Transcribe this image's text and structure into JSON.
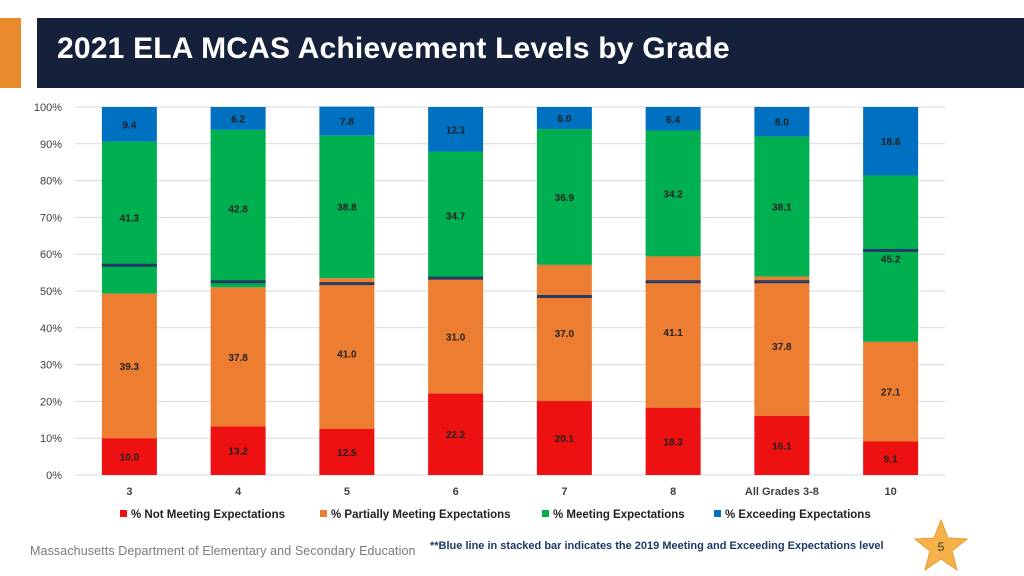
{
  "header": {
    "title": "2021 ELA MCAS Achievement Levels by Grade"
  },
  "footer": {
    "org": "Massachusetts Department of Elementary and Secondary Education",
    "note": "**Blue line in stacked bar indicates the 2019 Meeting and Exceeding Expectations level",
    "page_number": "5"
  },
  "colors": {
    "accent": "#e8892b",
    "title_bg": "#15203a",
    "benchmark_line": "#243b63"
  },
  "chart_data": {
    "type": "bar",
    "stacked": true,
    "categories": [
      "3",
      "4",
      "5",
      "6",
      "7",
      "8",
      "All Grades 3-8",
      "10"
    ],
    "yticks": [
      "0%",
      "10%",
      "20%",
      "30%",
      "40%",
      "50%",
      "60%",
      "70%",
      "80%",
      "90%",
      "100%"
    ],
    "ylim": [
      0,
      100
    ],
    "grid": true,
    "legend_position": "bottom",
    "series": [
      {
        "name": "% Not Meeting Expectations",
        "color": "#ee1111",
        "values": [
          10.0,
          13.2,
          12.5,
          22.2,
          20.1,
          18.3,
          16.1,
          9.1
        ],
        "labels": [
          "10.0",
          "13.2",
          "12.5",
          "22.2",
          "20.1",
          "18.3",
          "16.1",
          "9.1"
        ]
      },
      {
        "name": "% Partially Meeting Expectations",
        "color": "#ed7d31",
        "values": [
          39.3,
          37.8,
          41.0,
          31.0,
          37.0,
          41.1,
          37.8,
          27.1
        ],
        "labels": [
          "39.3",
          "37.8",
          "41.0",
          "31.0",
          "37.0",
          "41.1",
          "37.8",
          "27.1"
        ]
      },
      {
        "name": "% Meeting Expectations",
        "color": "#00b050",
        "values": [
          41.3,
          42.8,
          38.8,
          34.7,
          36.9,
          34.2,
          38.1,
          45.2
        ],
        "labels": [
          "41.3",
          "42.8",
          "38.8",
          "34.7",
          "36.9",
          "34.2",
          "38.1",
          "45.2"
        ]
      },
      {
        "name": "% Exceeding Expectations",
        "color": "#0070c0",
        "values": [
          9.4,
          6.2,
          7.8,
          12.1,
          6.0,
          6.4,
          8.0,
          18.6
        ],
        "labels": [
          "9.4",
          "6.2",
          "7.8",
          "12.1",
          "6.0",
          "6.4",
          "8.0",
          "18.6"
        ]
      }
    ],
    "benchmark_2019_meeting_exceeding": [
      57,
      52.5,
      52,
      53.5,
      48.5,
      52.5,
      52.5,
      61
    ]
  }
}
